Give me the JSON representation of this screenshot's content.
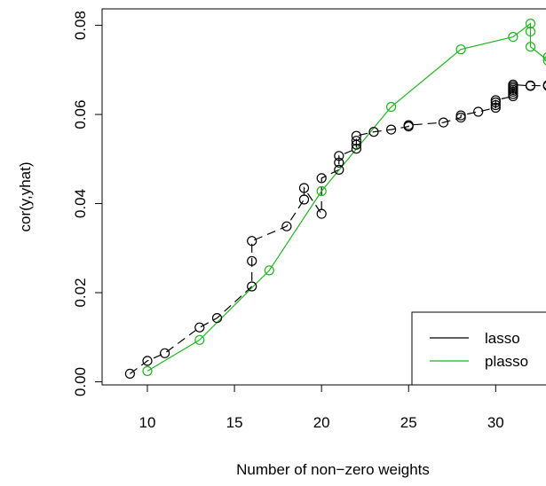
{
  "chart_data": {
    "type": "scatter",
    "xlabel": "Number of non−zero weights",
    "ylabel": "cor(y,yhat)",
    "xlim": [
      7.4,
      33.4
    ],
    "ylim": [
      -0.0007,
      0.0837
    ],
    "xticks": [
      10,
      15,
      20,
      25,
      30
    ],
    "yticks": [
      0.0,
      0.02,
      0.04,
      0.06,
      0.08
    ],
    "ytick_labels": [
      "0.00",
      "0.02",
      "0.04",
      "0.06",
      "0.08"
    ],
    "grid": false,
    "legend_position": "bottom-right",
    "series": [
      {
        "name": "lasso",
        "color": "#000000",
        "line_style": "dashed",
        "x": [
          9,
          10,
          11,
          13,
          14,
          16,
          16,
          16,
          18,
          19,
          19,
          20,
          20,
          21,
          21,
          21,
          22,
          22,
          22,
          22,
          23,
          24,
          25,
          25,
          27,
          28,
          28,
          29,
          30,
          30,
          30,
          30,
          31,
          31,
          31,
          31,
          31,
          31,
          31,
          32,
          32,
          33,
          33
        ],
        "y": [
          0.0018,
          0.0047,
          0.0064,
          0.0122,
          0.0143,
          0.0214,
          0.0271,
          0.0316,
          0.0349,
          0.0409,
          0.0435,
          0.0377,
          0.0457,
          0.0476,
          0.0492,
          0.0507,
          0.0523,
          0.0532,
          0.0541,
          0.0552,
          0.0561,
          0.0566,
          0.0573,
          0.0576,
          0.0582,
          0.0593,
          0.0598,
          0.0606,
          0.0615,
          0.0621,
          0.0627,
          0.0632,
          0.0641,
          0.0646,
          0.0651,
          0.0655,
          0.0659,
          0.0663,
          0.0667,
          0.0664,
          0.0665,
          0.0664,
          0.0666
        ]
      },
      {
        "name": "plasso",
        "color": "#1fb51f",
        "line_style": "solid",
        "x": [
          10,
          13,
          17,
          20,
          24,
          28,
          31,
          32,
          32,
          32,
          33,
          33
        ],
        "y": [
          0.0024,
          0.0094,
          0.025,
          0.0428,
          0.0617,
          0.0746,
          0.0774,
          0.0804,
          0.0786,
          0.0752,
          0.0721,
          0.0729
        ]
      }
    ]
  }
}
